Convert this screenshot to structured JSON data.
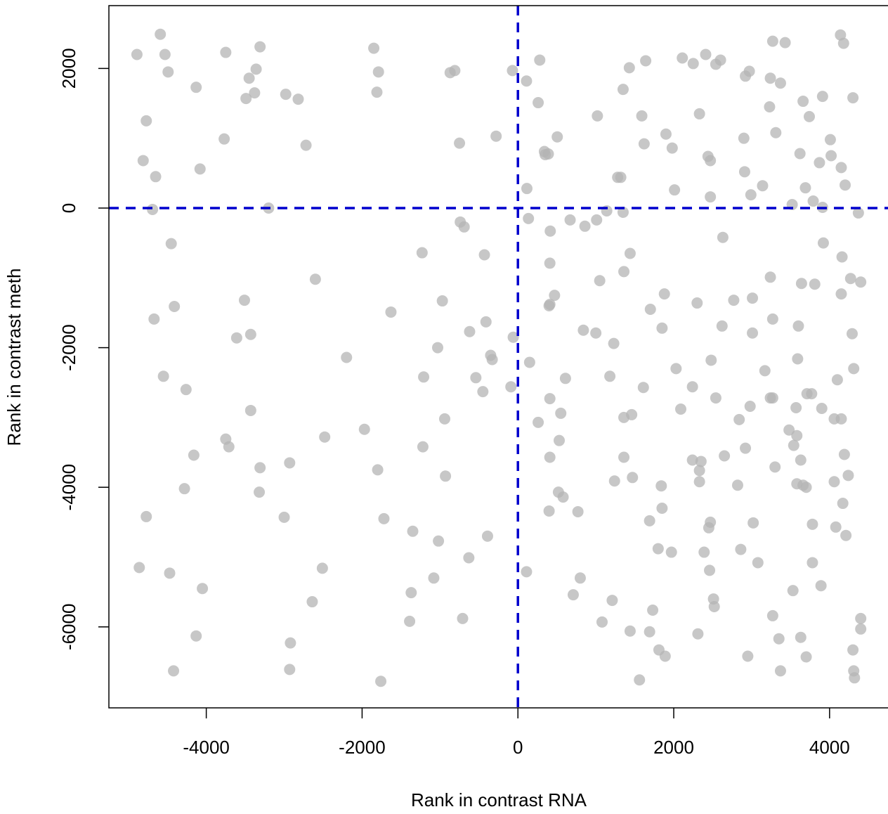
{
  "chart_data": {
    "type": "scatter",
    "x_label": "Rank in contrast RNA",
    "y_label": "Rank in contrast meth",
    "xlim": [
      -5250,
      4750
    ],
    "ylim": [
      -7160,
      2900
    ],
    "xticks": [
      -4000,
      -2000,
      0,
      2000,
      4000
    ],
    "yticks": [
      -6000,
      -4000,
      -2000,
      0,
      2000
    ],
    "color": "#b4b4b4",
    "hline": 0,
    "vline": 0,
    "line_color": "#0000cd",
    "x": [
      -4890,
      -4590,
      -4530,
      -4490,
      -3750,
      -3310,
      -3360,
      -3450,
      -3380,
      -3490,
      -4130,
      -4770,
      -3770,
      -2980,
      -2820,
      -2720,
      -4080,
      -4810,
      -4650,
      -4690,
      -3200,
      -4450,
      -1850,
      -1790,
      -1810,
      -870,
      -810,
      -750,
      -280,
      -70,
      280,
      110,
      260,
      340,
      350,
      390,
      505,
      115,
      135,
      415,
      670,
      860,
      1010,
      1140,
      1020,
      1280,
      1320,
      1350,
      1430,
      1350,
      1640,
      1590,
      1620,
      1900,
      1980,
      2010,
      2110,
      2250,
      2410,
      2540,
      2600,
      2330,
      2440,
      2470,
      2470,
      2970,
      2920,
      2900,
      2910,
      2990,
      3140,
      3270,
      3430,
      3240,
      3370,
      3230,
      3310,
      3620,
      3520,
      3660,
      3740,
      3910,
      4010,
      4020,
      3870,
      3690,
      3790,
      3910,
      4140,
      4180,
      4300,
      4150,
      4200,
      4370,
      2630,
      3920,
      4160,
      4270,
      4400,
      3640,
      3810,
      4150,
      4290,
      4310,
      -2600,
      -1230,
      -430,
      -740,
      -690,
      410,
      410,
      400,
      470,
      1050,
      1360,
      1440,
      -4410,
      -4670,
      -3510,
      -3610,
      -3430,
      -1630,
      -970,
      -410,
      -620,
      -60,
      -350,
      -330,
      -1030,
      -2200,
      -4550,
      -4260,
      -1210,
      -540,
      -450,
      -90,
      150,
      610,
      840,
      1000,
      1230,
      1180,
      1700,
      1880,
      1850,
      2770,
      3010,
      3240,
      3270,
      2620,
      2300,
      3010,
      2030,
      2480,
      3170,
      3600,
      3590,
      -3430,
      -3750,
      -3710,
      -4160,
      -3310,
      -3320,
      -4280,
      -2930,
      -2480,
      -1970,
      -1220,
      -940,
      -1800,
      -930,
      410,
      260,
      550,
      530,
      410,
      520,
      580,
      400,
      770,
      1610,
      1460,
      1360,
      1360,
      1240,
      1470,
      2090,
      2240,
      2540,
      2330,
      2240,
      2350,
      2330,
      2650,
      2840,
      2980,
      2920,
      3240,
      3270,
      3300,
      3480,
      3570,
      3580,
      3540,
      3630,
      3580,
      3660,
      3700,
      3710,
      3770,
      3900,
      4100,
      4060,
      4150,
      4190,
      4240,
      4060,
      4170,
      1840,
      1850,
      1690,
      2820,
      2450,
      2470,
      3020,
      3780,
      4080,
      4210,
      2860,
      3780,
      3080,
      2390,
      2460,
      1970,
      1800,
      2510,
      2520,
      3530,
      3890,
      3270,
      3350,
      3630,
      3700,
      4400,
      4400,
      4300,
      4310,
      4320,
      3370,
      2950,
      2310,
      1730,
      1690,
      1440,
      1080,
      1210,
      1810,
      1890,
      1560,
      800,
      710,
      110,
      -1350,
      -1720,
      -1020,
      -390,
      -630,
      -1080,
      -1370,
      -1390,
      -710,
      -1760,
      -2510,
      -2640,
      -3000,
      -2920,
      -2930,
      -4050,
      -4130,
      -4420,
      -4860,
      -4470,
      -4770
    ],
    "values": [
      2200,
      2490,
      2200,
      1950,
      2230,
      2310,
      1990,
      1860,
      1650,
      1570,
      1730,
      1250,
      990,
      1630,
      1560,
      900,
      560,
      680,
      450,
      -20,
      0,
      -510,
      2290,
      1950,
      1660,
      1940,
      1970,
      930,
      1030,
      1970,
      2120,
      1820,
      1510,
      810,
      765,
      775,
      1020,
      280,
      -150,
      -330,
      -170,
      -260,
      -170,
      -40,
      1320,
      440,
      440,
      1700,
      2010,
      -60,
      2110,
      1320,
      920,
      1060,
      860,
      260,
      2150,
      2070,
      2200,
      2060,
      2120,
      1350,
      740,
      680,
      160,
      1960,
      1890,
      1000,
      520,
      190,
      320,
      2390,
      2370,
      1860,
      1790,
      1450,
      1080,
      780,
      50,
      1530,
      1310,
      1600,
      980,
      750,
      650,
      290,
      100,
      10,
      2480,
      2360,
      1580,
      580,
      330,
      -70,
      -420,
      -500,
      -700,
      -1010,
      -1060,
      -1080,
      -1090,
      -1230,
      -1800,
      -2300,
      -1020,
      -640,
      -670,
      -200,
      -270,
      -790,
      -1380,
      -1400,
      -1250,
      -1040,
      -910,
      -650,
      -1410,
      -1590,
      -1320,
      -1860,
      -1810,
      -1490,
      -1330,
      -1630,
      -1770,
      -1850,
      -2110,
      -2170,
      -2000,
      -2140,
      -2410,
      -2600,
      -2420,
      -2430,
      -2630,
      -2560,
      -2210,
      -2440,
      -1750,
      -1790,
      -1940,
      -2410,
      -1450,
      -1230,
      -1720,
      -1320,
      -1290,
      -990,
      -1590,
      -1690,
      -1360,
      -1790,
      -2300,
      -2180,
      -2330,
      -1690,
      -2160,
      -2900,
      -3310,
      -3420,
      -3540,
      -3720,
      -4070,
      -4020,
      -3650,
      -3280,
      -3170,
      -3420,
      -3020,
      -3750,
      -3840,
      -2730,
      -3070,
      -2940,
      -3330,
      -3570,
      -4070,
      -4140,
      -4340,
      -4350,
      -2570,
      -2960,
      -3000,
      -3570,
      -3910,
      -3860,
      -2880,
      -2560,
      -2720,
      -3760,
      -3610,
      -3630,
      -3920,
      -3550,
      -3030,
      -2840,
      -3440,
      -2720,
      -2720,
      -3710,
      -3180,
      -2860,
      -3260,
      -3400,
      -3610,
      -3950,
      -3970,
      -4000,
      -2660,
      -2660,
      -2870,
      -2460,
      -3020,
      -3020,
      -3530,
      -3830,
      -3920,
      -4230,
      -3980,
      -4300,
      -4480,
      -3970,
      -4580,
      -4500,
      -4510,
      -4530,
      -4570,
      -4690,
      -4890,
      -5080,
      -5080,
      -4930,
      -5190,
      -4930,
      -4880,
      -5600,
      -5710,
      -5480,
      -5410,
      -5840,
      -6170,
      -6150,
      -6430,
      -5880,
      -6030,
      -6330,
      -6630,
      -6730,
      -6630,
      -6420,
      -6100,
      -5760,
      -6070,
      -6060,
      -5930,
      -5620,
      -6330,
      -6420,
      -6760,
      -5300,
      -5540,
      -5210,
      -4630,
      -4450,
      -4770,
      -4700,
      -5010,
      -5300,
      -5510,
      -5920,
      -5880,
      -6780,
      -5160,
      -5640,
      -4430,
      -6230,
      -6610,
      -5450,
      -6130,
      -6630,
      -5150,
      -5230,
      -4420
    ]
  }
}
